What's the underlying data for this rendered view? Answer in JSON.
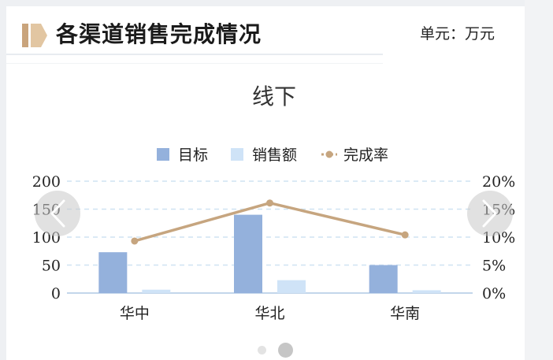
{
  "header": {
    "title": "各渠道销售完成情况",
    "unit": "单元：万元"
  },
  "chart_data": {
    "type": "bar",
    "title": "线下",
    "categories": [
      "华中",
      "华北",
      "华南"
    ],
    "series": [
      {
        "name": "目标",
        "type": "bar",
        "axis": "left",
        "values": [
          73,
          140,
          50
        ],
        "color": "#94b1dc"
      },
      {
        "name": "销售额",
        "type": "bar",
        "axis": "left",
        "values": [
          6,
          23,
          5
        ],
        "color": "#cfe3f7"
      },
      {
        "name": "完成率",
        "type": "line",
        "axis": "right",
        "values": [
          9.3,
          16.1,
          10.4
        ],
        "color": "#c6a57f"
      }
    ],
    "y_left": {
      "ylim": [
        0,
        200
      ],
      "ticks": [
        "0",
        "50",
        "100",
        "150",
        "200"
      ]
    },
    "y_right": {
      "ylim": [
        0,
        20
      ],
      "ticks": [
        "0%",
        "5%",
        "10%",
        "15%",
        "20%"
      ]
    },
    "grid": true,
    "legend": "top-center"
  },
  "carousel": {
    "page_count": 2,
    "active_index": 1
  },
  "icons": {
    "brand": "bookmark-logo-icon",
    "prev": "chevron-left-icon",
    "next": "chevron-right-icon"
  }
}
